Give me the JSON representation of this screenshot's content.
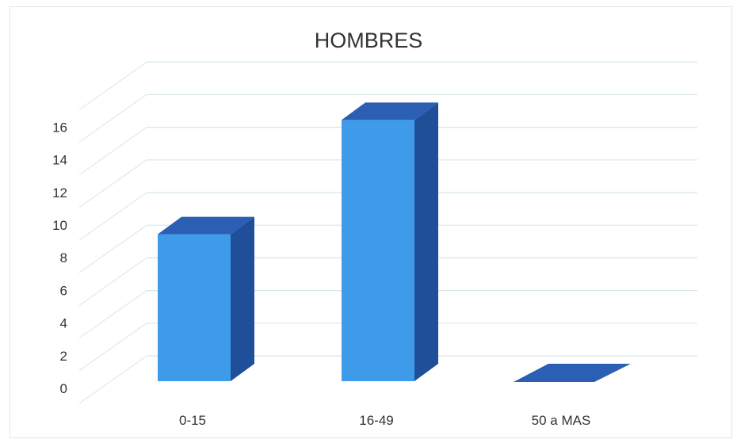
{
  "chart_data": {
    "type": "bar",
    "title": "HOMBRES",
    "categories": [
      "0-15",
      "16-49",
      "50 a MAS"
    ],
    "values": [
      9,
      16,
      0
    ],
    "ylim": [
      0,
      16
    ],
    "yticks": [
      0,
      2,
      4,
      6,
      8,
      10,
      12,
      14,
      16
    ],
    "grid": true,
    "style": "3d-column",
    "colors": {
      "front": "#3d9be9",
      "side": "#1f4f99",
      "top": "#2b5fb3",
      "grid": "#d7e6e6"
    }
  }
}
